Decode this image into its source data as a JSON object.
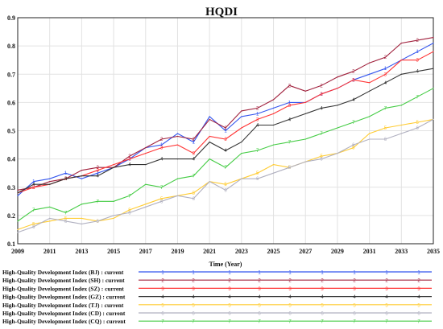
{
  "chart_data": {
    "type": "line",
    "title": "HQDI",
    "xlabel": "Time (Year)",
    "ylabel": "",
    "xlim": [
      2009,
      2035
    ],
    "ylim": [
      0.1,
      0.9
    ],
    "grid": true,
    "legend_position": "bottom",
    "x_ticks": [
      "2009",
      "2011",
      "2013",
      "2015",
      "2017",
      "2019",
      "2021",
      "2023",
      "2025",
      "2027",
      "2029",
      "2031",
      "2033",
      "2035"
    ],
    "y_ticks": [
      "0.1",
      "0.2",
      "0.3",
      "0.4",
      "0.5",
      "0.6",
      "0.7",
      "0.8",
      "0.9"
    ],
    "x": [
      2009,
      2010,
      2011,
      2012,
      2013,
      2014,
      2015,
      2016,
      2017,
      2018,
      2019,
      2020,
      2021,
      2022,
      2023,
      2024,
      2025,
      2026,
      2027,
      2028,
      2029,
      2030,
      2031,
      2032,
      2033,
      2034,
      2035
    ],
    "series": [
      {
        "name": "High-Quality Development Index  (BJ)  :  current",
        "marker": "1",
        "color": "#3355ee",
        "values": [
          0.27,
          0.32,
          0.33,
          0.35,
          0.33,
          0.35,
          0.37,
          0.4,
          0.44,
          0.45,
          0.49,
          0.46,
          0.55,
          0.5,
          0.55,
          0.56,
          0.58,
          0.6,
          0.6,
          0.63,
          0.65,
          0.68,
          0.7,
          0.72,
          0.75,
          0.78,
          0.81
        ]
      },
      {
        "name": "High-Quality Development Index  (SH)  :  current",
        "marker": "2",
        "color": "#a0203c",
        "values": [
          0.29,
          0.3,
          0.32,
          0.33,
          0.36,
          0.37,
          0.37,
          0.41,
          0.44,
          0.47,
          0.48,
          0.47,
          0.54,
          0.51,
          0.57,
          0.58,
          0.61,
          0.66,
          0.64,
          0.66,
          0.69,
          0.71,
          0.74,
          0.76,
          0.81,
          0.82,
          0.83
        ]
      },
      {
        "name": "High-Quality Development Index  (SZ)  :  current",
        "marker": "3",
        "color": "#ff3333",
        "values": [
          0.28,
          0.3,
          0.31,
          0.33,
          0.34,
          0.36,
          0.38,
          0.4,
          0.42,
          0.44,
          0.45,
          0.42,
          0.48,
          0.47,
          0.51,
          0.54,
          0.56,
          0.59,
          0.6,
          0.63,
          0.65,
          0.68,
          0.67,
          0.7,
          0.75,
          0.75,
          0.78
        ]
      },
      {
        "name": "High-Quality Development Index  (GZ)  :  current",
        "marker": "4",
        "color": "#333333",
        "values": [
          0.28,
          0.31,
          0.31,
          0.33,
          0.34,
          0.34,
          0.37,
          0.38,
          0.38,
          0.4,
          0.4,
          0.4,
          0.46,
          0.43,
          0.46,
          0.52,
          0.52,
          0.54,
          0.56,
          0.58,
          0.59,
          0.61,
          0.64,
          0.67,
          0.7,
          0.71,
          0.72
        ]
      },
      {
        "name": "High-Quality Development Index  (TJ)  :  current",
        "marker": "5",
        "color": "#ffcc33",
        "values": [
          0.15,
          0.17,
          0.18,
          0.19,
          0.19,
          0.18,
          0.19,
          0.22,
          0.24,
          0.26,
          0.27,
          0.28,
          0.32,
          0.31,
          0.33,
          0.35,
          0.38,
          0.37,
          0.39,
          0.41,
          0.42,
          0.44,
          0.49,
          0.51,
          0.52,
          0.53,
          0.54
        ]
      },
      {
        "name": "High-Quality Development Index  (CD)  :  current",
        "marker": "6",
        "color": "#b0b0c0",
        "values": [
          0.14,
          0.16,
          0.19,
          0.18,
          0.17,
          0.18,
          0.2,
          0.21,
          0.23,
          0.25,
          0.27,
          0.26,
          0.32,
          0.29,
          0.33,
          0.33,
          0.35,
          0.37,
          0.39,
          0.4,
          0.42,
          0.45,
          0.47,
          0.47,
          0.49,
          0.51,
          0.54
        ]
      },
      {
        "name": "High-Quality Development Index  (CQ)  :  current",
        "marker": "7",
        "color": "#44cc44",
        "values": [
          0.18,
          0.22,
          0.23,
          0.21,
          0.24,
          0.25,
          0.25,
          0.27,
          0.31,
          0.3,
          0.33,
          0.34,
          0.4,
          0.37,
          0.42,
          0.43,
          0.45,
          0.46,
          0.47,
          0.49,
          0.51,
          0.53,
          0.55,
          0.58,
          0.59,
          0.62,
          0.65
        ]
      }
    ]
  }
}
